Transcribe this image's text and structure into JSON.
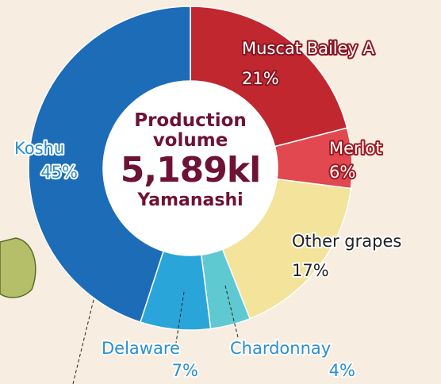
{
  "chart_data": {
    "type": "donut",
    "title": "Production volume",
    "total": "5,189kl",
    "subtitle": "Yamanashi",
    "categories": [
      "Muscat Bailey A",
      "Merlot",
      "Other grapes",
      "Chardonnay",
      "Delaware",
      "Koshu"
    ],
    "values": [
      21,
      6,
      17,
      4,
      7,
      45
    ],
    "value_labels": [
      "21%",
      "6%",
      "17%",
      "4%",
      "7%",
      "45%"
    ],
    "colors": [
      "#c1272f",
      "#e2484f",
      "#f3e39b",
      "#5ec9d1",
      "#2aa5da",
      "#1c6cb8"
    ]
  }
}
